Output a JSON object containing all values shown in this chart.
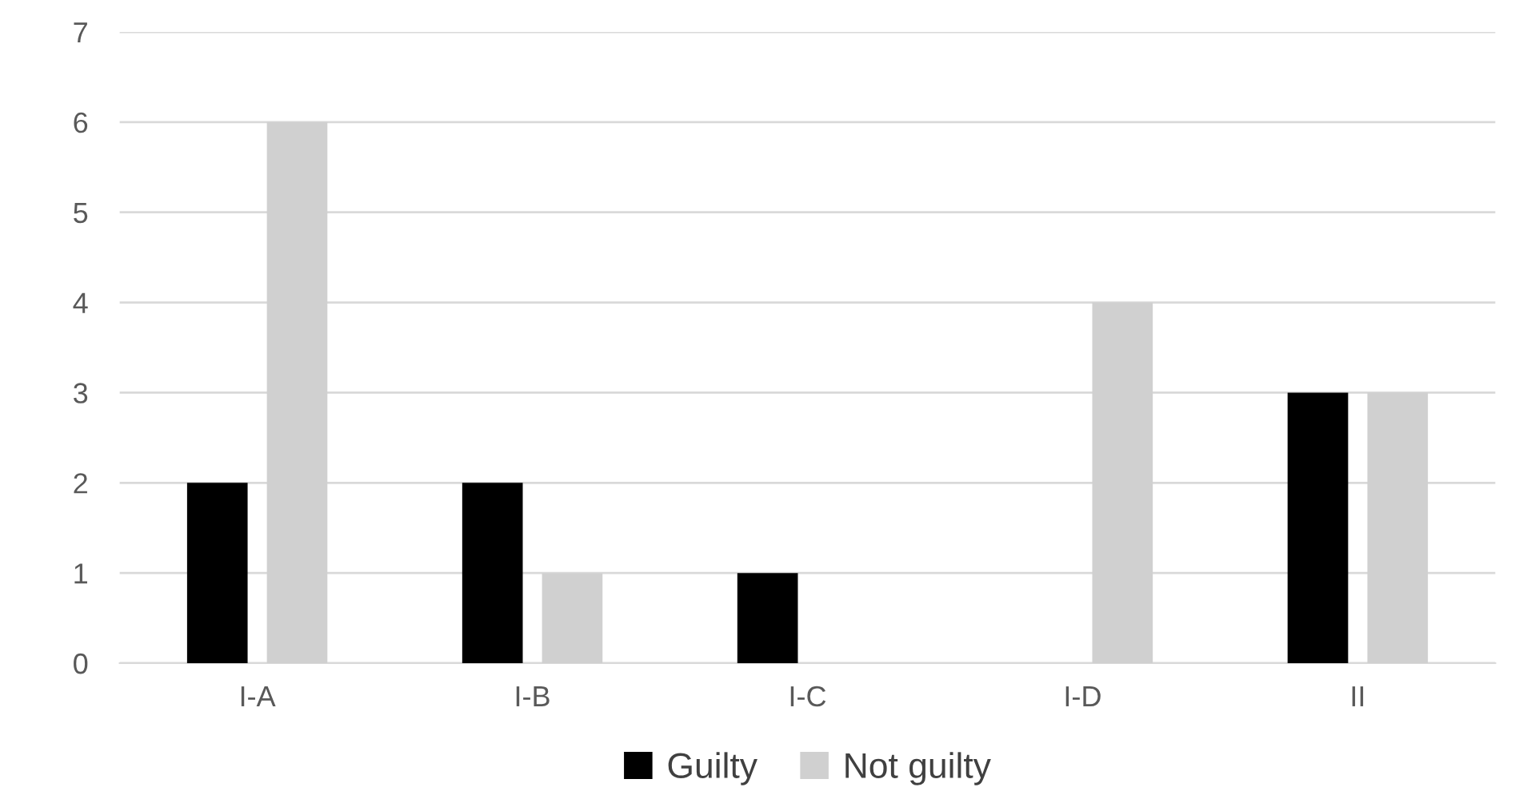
{
  "chart_data": {
    "type": "bar",
    "categories": [
      "I-A",
      "I-B",
      "I-C",
      "I-D",
      "II"
    ],
    "series": [
      {
        "name": "Guilty",
        "color": "#000000",
        "values": [
          2,
          2,
          1,
          0,
          3
        ]
      },
      {
        "name": "Not guilty",
        "color": "#d0d0d0",
        "values": [
          6,
          1,
          0,
          4,
          3
        ]
      }
    ],
    "ylim": [
      0,
      7
    ],
    "yticks": [
      0,
      1,
      2,
      3,
      4,
      5,
      6,
      7
    ],
    "grid": "y",
    "legend": "bottom"
  }
}
